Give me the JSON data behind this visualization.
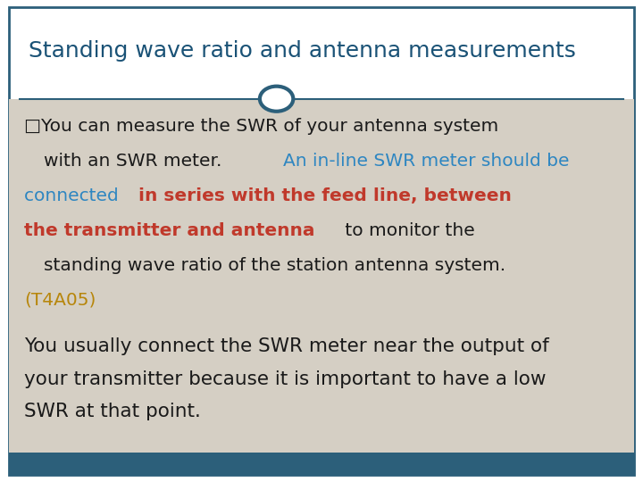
{
  "title": "Standing wave ratio and antenna measurements",
  "title_color": "#1a5276",
  "title_font": "Georgia",
  "title_fontsize": 18,
  "bg_color": "#ffffff",
  "content_bg": "#d5cfc4",
  "border_color": "#2c5f7a",
  "footer_color": "#2c5f7a",
  "circle_color": "#2c5f7a",
  "black_color": "#1a1a1a",
  "blue_color": "#2e86c1",
  "red_color": "#c0392b",
  "gold_color": "#b7860b",
  "content_fontsize": 14.5,
  "para2_fontsize": 15.5,
  "para2_line1": "You usually connect the SWR meter near the output of",
  "para2_line2": "your transmitter because it is important to have a low",
  "para2_line3": "SWR at that point."
}
